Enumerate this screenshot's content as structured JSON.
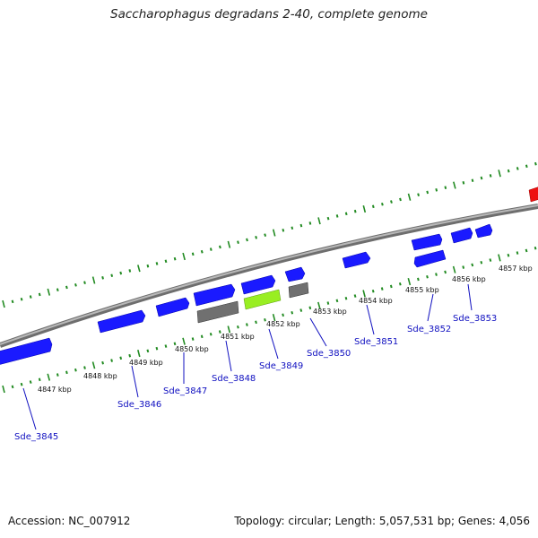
{
  "title": "Saccharophagus degradans 2-40, complete genome",
  "footer": {
    "accession": "Accession: NC_007912",
    "topology": "Topology: circular; Length: 5,057,531 bp; Genes: 4,056"
  },
  "colors": {
    "forward_gene": "#1a1aff",
    "reverse_gene": "#1a1aff",
    "pseudo_gene": "#707070",
    "highlight_gene": "#99ee22",
    "rna_gene": "#ee1111",
    "tick": "#228b22",
    "backbone": "#8c8c8c",
    "label": "#1010c0"
  },
  "kbp_labels": [
    "4847 kbp",
    "4848 kbp",
    "4849 kbp",
    "4850 kbp",
    "4851 kbp",
    "4852 kbp",
    "4853 kbp",
    "4854 kbp",
    "4855 kbp",
    "4856 kbp",
    "4857 kbp"
  ],
  "gene_labels": [
    "Sde_3845",
    "Sde_3846",
    "Sde_3847",
    "Sde_3848",
    "Sde_3849",
    "Sde_3850",
    "Sde_3851",
    "Sde_3852",
    "Sde_3853"
  ]
}
